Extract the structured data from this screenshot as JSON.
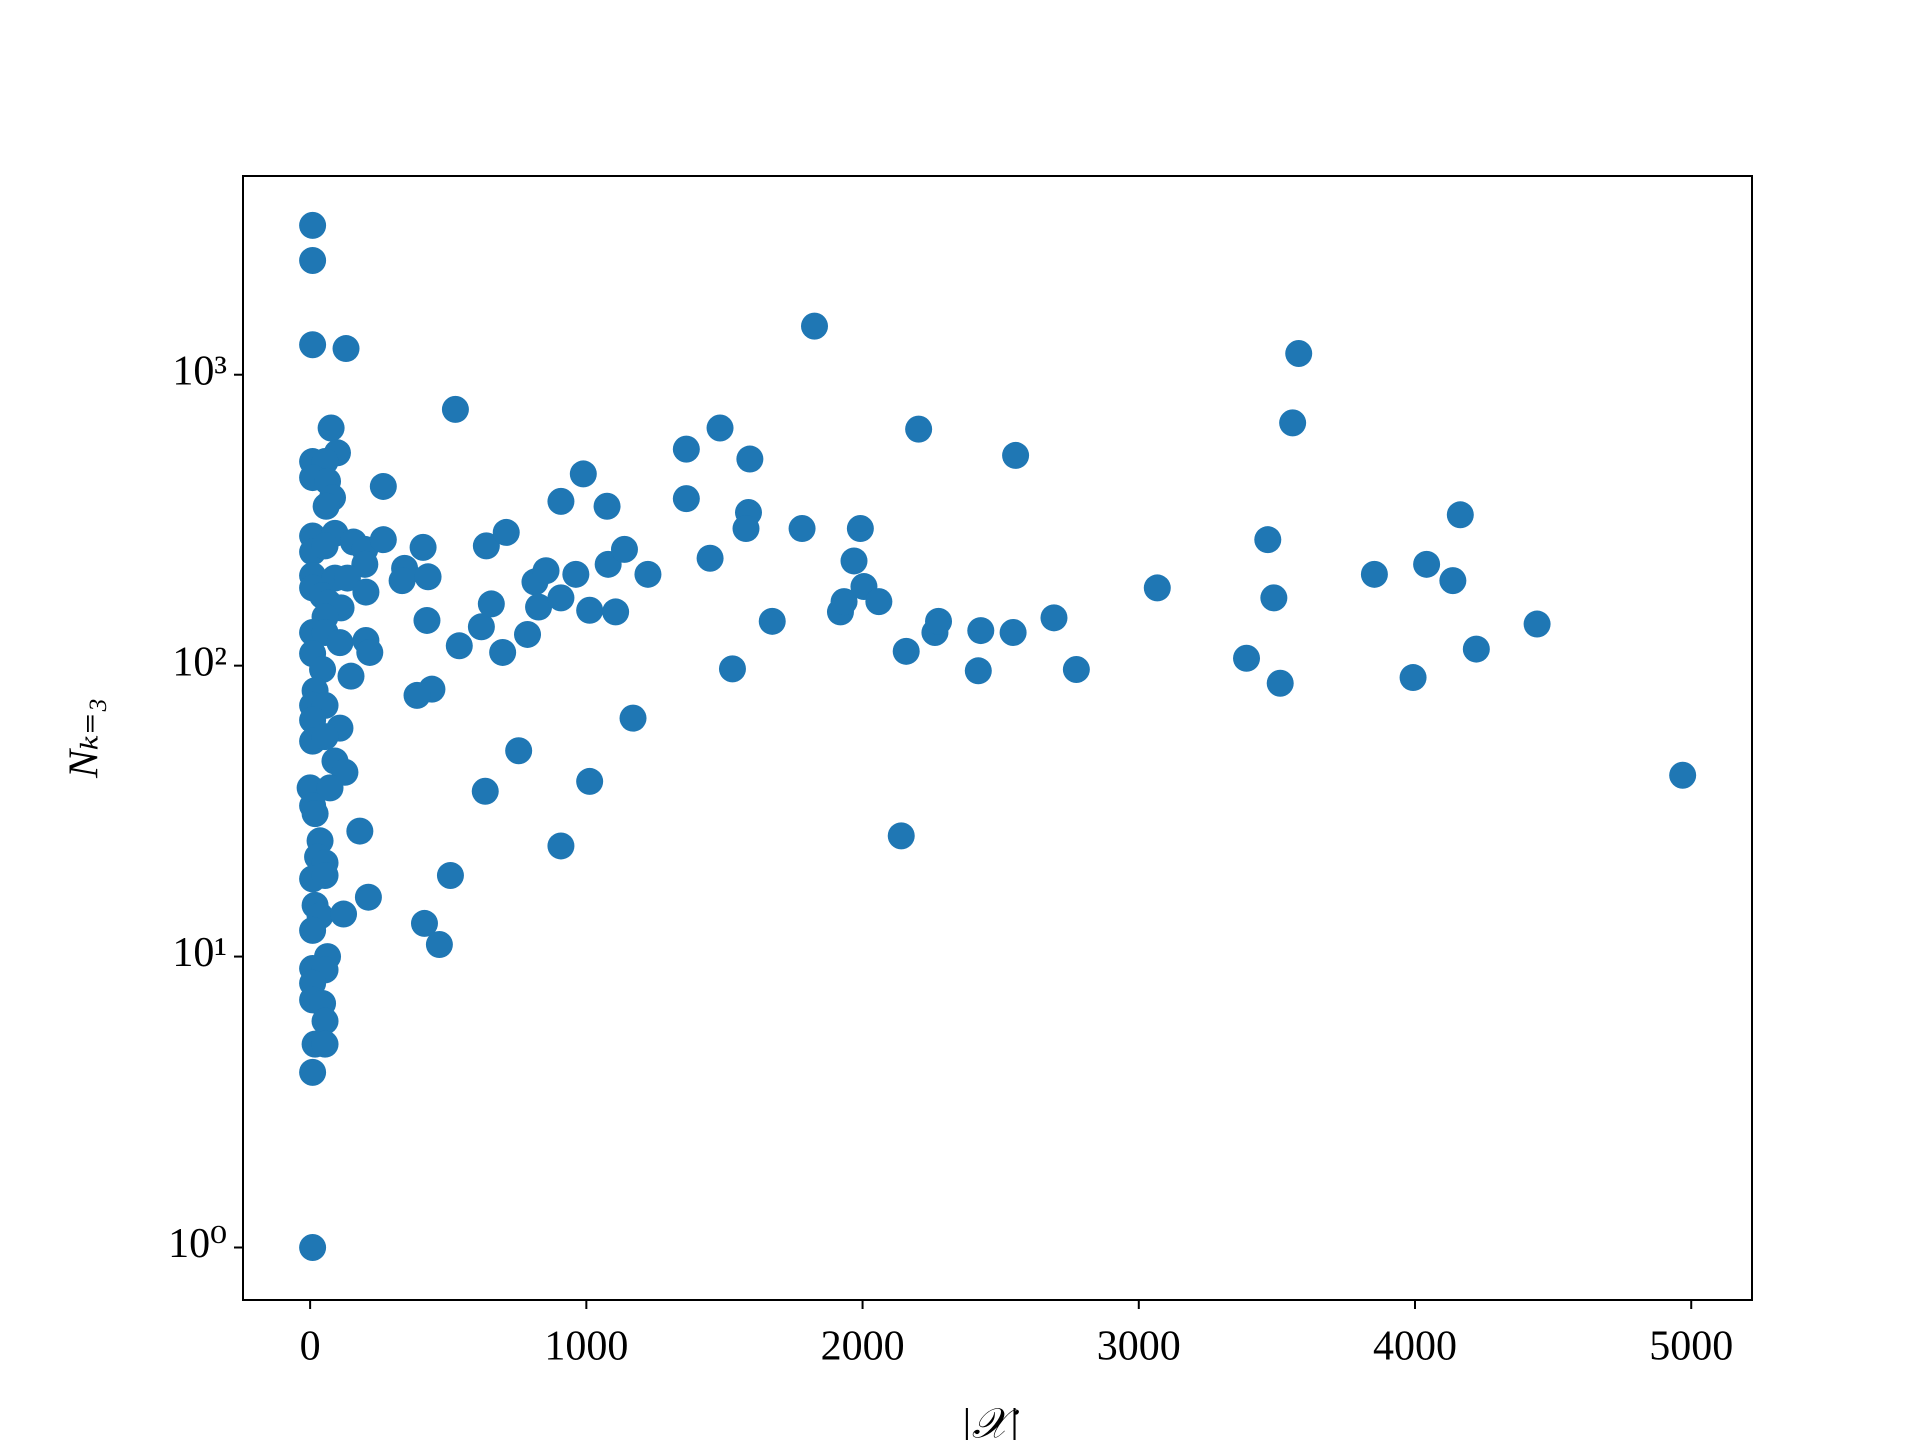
{
  "chart_data": {
    "type": "scatter",
    "xlabel": "|𝒳|",
    "ylabel": "Nₖ₌₃",
    "color": "#1f77b4",
    "yscale": "log",
    "xlim": [
      -243,
      5220
    ],
    "ylim": [
      0.66,
      4820
    ],
    "xticks": [
      0,
      1000,
      2000,
      3000,
      4000,
      5000
    ],
    "yticks": [
      {
        "value": 1,
        "label": "10⁰"
      },
      {
        "value": 10,
        "label": "10¹"
      },
      {
        "value": 100,
        "label": "10²"
      },
      {
        "value": 1000,
        "label": "10³"
      }
    ],
    "x": [
      9,
      9,
      9,
      130,
      76,
      99,
      9,
      54,
      9,
      63,
      81,
      58,
      9,
      90,
      157,
      9,
      54,
      198,
      198,
      9,
      90,
      9,
      45,
      135,
      202,
      67,
      112,
      54,
      9,
      54,
      108,
      202,
      216,
      9,
      45,
      148,
      18,
      9,
      54,
      9,
      108,
      9,
      54,
      90,
      126,
      0,
      72,
      9,
      18,
      180,
      36,
      27,
      54,
      9,
      54,
      211,
      18,
      36,
      121,
      9,
      63,
      9,
      54,
      9,
      9,
      45,
      54,
      18,
      54,
      9,
      9,
      265,
      265,
      342,
      333,
      409,
      427,
      423,
      526,
      540,
      441,
      387,
      414,
      468,
      508,
      634,
      620,
      638,
      656,
      697,
      710,
      755,
      787,
      814,
      827,
      854,
      908,
      908,
      908,
      962,
      989,
      1012,
      1012,
      1075,
      1079,
      1106,
      1138,
      1169,
      1223,
      1362,
      1362,
      1448,
      1484,
      1529,
      1587,
      1592,
      1578,
      1673,
      1781,
      1826,
      1920,
      1933,
      1969,
      1992,
      2005,
      2059,
      2140,
      2158,
      2203,
      2262,
      2275,
      2419,
      2428,
      2545,
      2554,
      2693,
      2774,
      3067,
      3390,
      3467,
      3489,
      3512,
      3557,
      3579,
      3853,
      3993,
      4042,
      4137,
      4164,
      4222,
      4442,
      4969
    ],
    "values": [
      3260,
      2470,
      1268,
      1230,
      656,
      539,
      503,
      503,
      443,
      430,
      378,
      353,
      279,
      285,
      266,
      246,
      258,
      251,
      223,
      204,
      200,
      185,
      174,
      200,
      179,
      164,
      158,
      147,
      130,
      130,
      120,
      122,
      111,
      110,
      97,
      92,
      82,
      73,
      73,
      65,
      61,
      55,
      57,
      47,
      43,
      38,
      38,
      33,
      31,
      27,
      25,
      22,
      21,
      18.5,
      19,
      16,
      15,
      13.8,
      14,
      12.3,
      10,
      9.1,
      9,
      8.1,
      7.1,
      6.9,
      6,
      5,
      5,
      4,
      1,
      413,
      271,
      216,
      196,
      255,
      202,
      143,
      760,
      117,
      83,
      79,
      13,
      11,
      19,
      37,
      136,
      258,
      163,
      111,
      287,
      51,
      128,
      194,
      159,
      212,
      367,
      171,
      24,
      206,
      456,
      155,
      40,
      353,
      223,
      153,
      251,
      66,
      206,
      555,
      375,
      234,
      656,
      97.5,
      336,
      513,
      296,
      142,
      296,
      1469,
      153,
      166,
      229,
      296,
      187,
      166,
      26,
      112,
      650,
      130,
      142,
      96,
      132,
      130,
      528,
      146,
      97,
      185,
      106,
      271,
      171,
      87,
      683,
      1183,
      206,
      91,
      223,
      196,
      330,
      114,
      139,
      42
    ]
  }
}
